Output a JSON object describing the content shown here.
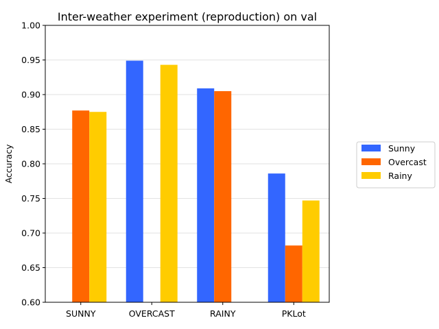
{
  "chart_data": {
    "type": "bar",
    "title": "Inter-weather experiment (reproduction) on val",
    "xlabel": "",
    "ylabel": "Accuracy",
    "categories": [
      "SUNNY",
      "OVERCAST",
      "RAINY",
      "PKLot"
    ],
    "series": [
      {
        "name": "Sunny",
        "color": "#3366ff",
        "values": [
          null,
          0.949,
          0.909,
          0.786
        ]
      },
      {
        "name": "Overcast",
        "color": "#ff6600",
        "values": [
          0.877,
          null,
          0.905,
          0.682
        ]
      },
      {
        "name": "Rainy",
        "color": "#ffcc00",
        "values": [
          0.875,
          0.943,
          null,
          0.747
        ]
      }
    ],
    "ylim": [
      0.6,
      1.0
    ],
    "yticks": [
      "0.60",
      "0.65",
      "0.70",
      "0.75",
      "0.80",
      "0.85",
      "0.90",
      "0.95",
      "1.00"
    ],
    "grid": "y",
    "legend": "right"
  }
}
